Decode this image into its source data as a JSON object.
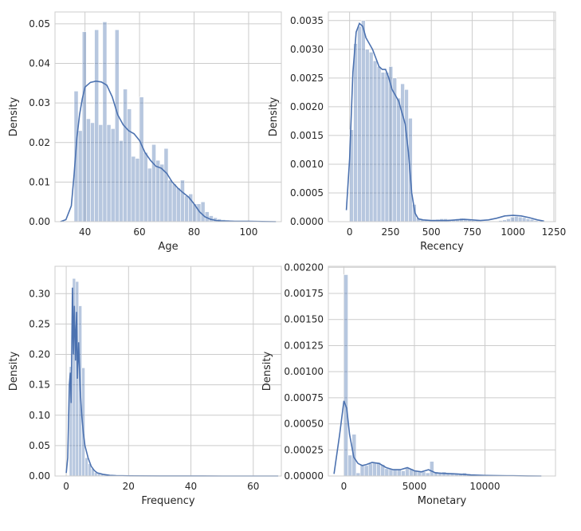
{
  "chart_data": [
    {
      "type": "bar",
      "subtype": "histogram-with-kde",
      "xlabel": "Age",
      "ylabel": "Density",
      "xlim": [
        29,
        112
      ],
      "ylim": [
        0,
        0.053
      ],
      "xticks": [
        "40",
        "60",
        "80",
        "100"
      ],
      "yticks": [
        "0.00",
        "0.01",
        "0.02",
        "0.03",
        "0.04",
        "0.05"
      ],
      "grid": true,
      "bins": {
        "start": 36,
        "width": 1.5,
        "values": [
          0.033,
          0.023,
          0.048,
          0.026,
          0.025,
          0.0485,
          0.0245,
          0.0505,
          0.0245,
          0.0235,
          0.0485,
          0.0205,
          0.0335,
          0.0285,
          0.0165,
          0.016,
          0.0315,
          0.0175,
          0.0135,
          0.0195,
          0.0155,
          0.0145,
          0.0185,
          0.0105,
          0.0095,
          0.0085,
          0.0105,
          0.0065,
          0.007,
          0.0045,
          0.0045,
          0.005,
          0.0025,
          0.0015,
          0.001,
          0.0007,
          0.0005,
          0.0004,
          0.0003,
          0.0002,
          0.00015,
          0.0001,
          0.0001,
          0.0001,
          8e-05,
          8e-05,
          6e-05,
          5e-05
        ]
      },
      "kde": {
        "x": [
          31,
          33,
          35,
          36,
          37,
          38,
          39,
          40,
          42,
          44,
          46,
          48,
          50,
          52,
          54,
          56,
          58,
          60,
          62,
          64,
          66,
          68,
          70,
          72,
          74,
          76,
          78,
          80,
          82,
          84,
          86,
          88,
          90,
          95,
          100,
          105,
          110
        ],
        "y": [
          0,
          0.0005,
          0.004,
          0.012,
          0.021,
          0.027,
          0.031,
          0.034,
          0.0352,
          0.0355,
          0.0353,
          0.0345,
          0.0315,
          0.027,
          0.0245,
          0.023,
          0.0222,
          0.0205,
          0.0175,
          0.0155,
          0.014,
          0.0135,
          0.0122,
          0.01,
          0.0085,
          0.0073,
          0.0062,
          0.0045,
          0.0025,
          0.0012,
          0.0006,
          0.0003,
          0.0002,
          0.0001,
          0.0001,
          5e-05,
          0
        ]
      }
    },
    {
      "type": "bar",
      "subtype": "histogram-with-kde",
      "xlabel": "Recency",
      "ylabel": "Density",
      "xlim": [
        -130,
        1260
      ],
      "ylim": [
        0,
        0.00365
      ],
      "xticks": [
        "0",
        "250",
        "500",
        "750",
        "1000",
        "1250"
      ],
      "yticks": [
        "0.0000",
        "0.0005",
        "0.0010",
        "0.0015",
        "0.0020",
        "0.0025",
        "0.0030",
        "0.0035"
      ],
      "grid": true,
      "bins": {
        "start": 0,
        "width": 24,
        "values": [
          0.0016,
          0.0031,
          0.0034,
          0.0035,
          0.003,
          0.00295,
          0.0028,
          0.0027,
          0.0026,
          0.0026,
          0.0027,
          0.0025,
          0.00215,
          0.0024,
          0.0023,
          0.0018,
          0.0003,
          6e-05,
          4e-05,
          3e-05,
          3e-05,
          3e-05,
          4e-05,
          5e-05,
          5e-05,
          4e-05,
          4e-05,
          5e-05,
          6e-05,
          4e-05,
          3e-05,
          2e-05,
          2e-05,
          1e-05,
          1e-05,
          1e-05,
          1e-05,
          1e-05,
          2e-05,
          3e-05,
          5e-05,
          8e-05,
          9e-05,
          8e-05,
          7e-05,
          5e-05,
          4e-05,
          2e-05
        ]
      },
      "kde": {
        "x": [
          -20,
          0,
          20,
          40,
          60,
          80,
          100,
          120,
          140,
          160,
          180,
          200,
          220,
          240,
          260,
          280,
          300,
          320,
          340,
          360,
          380,
          400,
          420,
          450,
          500,
          600,
          700,
          750,
          800,
          850,
          900,
          950,
          1000,
          1050,
          1100,
          1150,
          1190
        ],
        "y": [
          0.0002,
          0.0011,
          0.0026,
          0.0033,
          0.00345,
          0.0034,
          0.0032,
          0.0031,
          0.003,
          0.00285,
          0.0027,
          0.00265,
          0.00265,
          0.0025,
          0.0023,
          0.0022,
          0.0021,
          0.0019,
          0.0017,
          0.0012,
          0.0005,
          0.00015,
          5e-05,
          3e-05,
          2e-05,
          2e-05,
          4e-05,
          3e-05,
          2e-05,
          3e-05,
          6e-05,
          0.0001,
          0.00011,
          0.0001,
          7e-05,
          3e-05,
          1e-05
        ]
      }
    },
    {
      "type": "bar",
      "subtype": "histogram-with-kde",
      "xlabel": "Frequency",
      "ylabel": "Density",
      "xlim": [
        -3.6,
        69
      ],
      "ylim": [
        0,
        0.345
      ],
      "xticks": [
        "0",
        "20",
        "40",
        "60"
      ],
      "yticks": [
        "0.00",
        "0.05",
        "0.10",
        "0.15",
        "0.20",
        "0.25",
        "0.30"
      ],
      "grid": true,
      "bins": {
        "start": 0,
        "width": 1,
        "values": [
          0.0,
          0.18,
          0.325,
          0.32,
          0.28,
          0.178,
          0.03,
          0.02,
          0.012,
          0.006,
          0.004,
          0.003,
          0.002,
          0.0015,
          0.001,
          0.001,
          0.0008,
          0.0006,
          0.0005,
          0.0004
        ]
      },
      "kde": {
        "x": [
          0,
          0.5,
          1,
          1.3,
          1.6,
          2,
          2.3,
          2.6,
          3,
          3.3,
          3.6,
          4,
          4.5,
          5,
          5.5,
          6,
          7,
          8,
          9,
          10,
          12,
          14,
          16,
          20,
          30,
          40,
          50,
          60,
          68
        ],
        "y": [
          0.005,
          0.03,
          0.15,
          0.17,
          0.12,
          0.31,
          0.2,
          0.28,
          0.19,
          0.27,
          0.16,
          0.22,
          0.14,
          0.1,
          0.07,
          0.05,
          0.03,
          0.016,
          0.009,
          0.005,
          0.0025,
          0.001,
          0.0005,
          0.0002,
          0.0001,
          0.0001,
          5e-05,
          2e-05,
          0
        ]
      }
    },
    {
      "type": "bar",
      "subtype": "histogram-with-kde",
      "xlabel": "Monetary",
      "ylabel": "Density",
      "xlim": [
        -1100,
        15000
      ],
      "ylim": [
        0,
        0.00201
      ],
      "xticks": [
        "0",
        "5000",
        "10000"
      ],
      "yticks": [
        "0.00000",
        "0.00025",
        "0.00050",
        "0.00075",
        "0.00100",
        "0.00125",
        "0.00150",
        "0.00175",
        "0.00200"
      ],
      "grid": true,
      "bins": {
        "start": 0,
        "width": 290,
        "values": [
          0.00193,
          0.0002,
          0.0004,
          3e-05,
          0.00011,
          0.0001,
          0.00012,
          0.00013,
          0.00013,
          0.00011,
          7e-05,
          7e-05,
          6e-05,
          6e-05,
          5e-05,
          8e-05,
          7e-05,
          5e-05,
          4e-05,
          4e-05,
          3e-05,
          0.00014,
          4e-05,
          3e-05,
          4e-05,
          3e-05,
          3e-05,
          2e-05,
          2e-05,
          3e-05,
          2e-05,
          1e-05,
          1e-05,
          1e-05,
          1e-05,
          1e-05,
          1e-05,
          5e-06,
          5e-06,
          5e-06,
          5e-06,
          5e-06,
          5e-06,
          5e-06,
          5e-06,
          5e-06,
          5e-06,
          5e-06
        ]
      },
      "kde": {
        "x": [
          -700,
          -300,
          0,
          200,
          400,
          700,
          1000,
          1300,
          1600,
          2000,
          2500,
          3000,
          3500,
          4000,
          4500,
          5000,
          5500,
          6000,
          6500,
          7000,
          8000,
          9000,
          10000,
          11000,
          12000,
          13000,
          14000
        ],
        "y": [
          2e-05,
          0.0004,
          0.00072,
          0.00065,
          0.0004,
          0.00018,
          0.00012,
          0.0001,
          0.00011,
          0.00013,
          0.00012,
          8e-05,
          6e-05,
          6e-05,
          8e-05,
          5e-05,
          4e-05,
          6e-05,
          3e-05,
          2.5e-05,
          2e-05,
          1e-05,
          5e-06,
          3e-06,
          2e-06,
          1e-06,
          0
        ]
      }
    }
  ]
}
